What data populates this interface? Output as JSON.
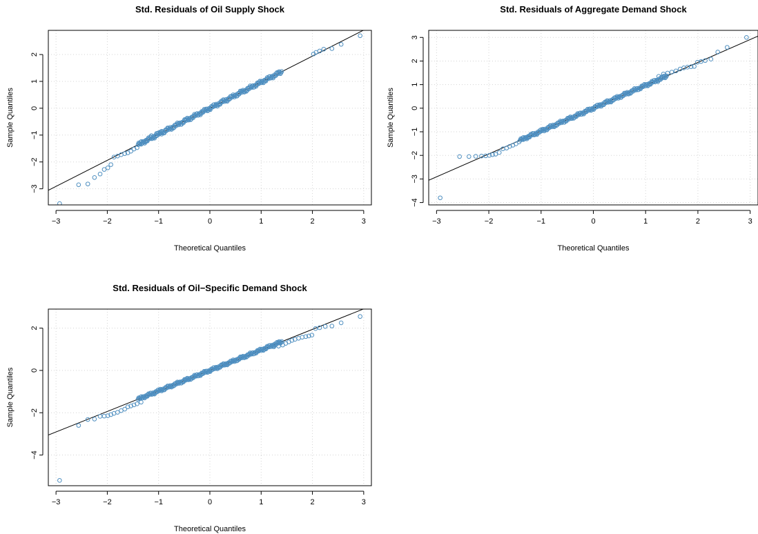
{
  "chart_data": [
    {
      "type": "scatter",
      "title": "Std. Residuals of Oil Supply Shock",
      "xlabel": "Theoretical Quantiles",
      "ylabel": "Sample Quantiles",
      "xlim": [
        -3.15,
        3.15
      ],
      "ylim": [
        -3.6,
        2.9
      ],
      "xticks": [
        -3,
        -2,
        -1,
        0,
        1,
        2,
        3
      ],
      "yticks": [
        -3,
        -2,
        -1,
        0,
        1,
        2
      ],
      "grid": true,
      "ref_line": {
        "intercept": 0.0,
        "slope": 0.97
      },
      "points": [
        {
          "x": -2.93,
          "y": -3.55
        },
        {
          "x": -2.56,
          "y": -2.85
        },
        {
          "x": -2.38,
          "y": -2.82
        },
        {
          "x": -2.25,
          "y": -2.58
        },
        {
          "x": -2.14,
          "y": -2.45
        },
        {
          "x": -2.06,
          "y": -2.28
        },
        {
          "x": -1.99,
          "y": -2.22
        },
        {
          "x": -1.93,
          "y": -2.1
        },
        {
          "x": -1.87,
          "y": -1.82
        },
        {
          "x": -1.8,
          "y": -1.78
        },
        {
          "x": -1.73,
          "y": -1.73
        },
        {
          "x": -1.66,
          "y": -1.69
        },
        {
          "x": -1.6,
          "y": -1.66
        },
        {
          "x": -1.54,
          "y": -1.6
        },
        {
          "x": -1.48,
          "y": -1.52
        },
        {
          "x": -1.42,
          "y": -1.47
        },
        {
          "x": -1.34,
          "y": -1.34
        },
        {
          "x": -1.25,
          "y": -1.22
        },
        {
          "x": -1.14,
          "y": -1.02
        },
        {
          "x": -1.04,
          "y": -0.94
        },
        {
          "x": -0.94,
          "y": -0.86
        },
        {
          "x": 2.02,
          "y": 2.02
        },
        {
          "x": 2.07,
          "y": 2.08
        },
        {
          "x": 2.14,
          "y": 2.13
        },
        {
          "x": 2.22,
          "y": 2.2
        },
        {
          "x": 2.38,
          "y": 2.22
        },
        {
          "x": 2.56,
          "y": 2.38
        },
        {
          "x": 2.93,
          "y": 2.7
        }
      ]
    },
    {
      "type": "scatter",
      "title": "Std. Residuals of Aggregate Demand Shock",
      "xlabel": "Theoretical Quantiles",
      "ylabel": "Sample Quantiles",
      "xlim": [
        -3.15,
        3.15
      ],
      "ylim": [
        -4.1,
        3.3
      ],
      "xticks": [
        -3,
        -2,
        -1,
        0,
        1,
        2,
        3
      ],
      "yticks": [
        -4,
        -3,
        -2,
        -1,
        0,
        1,
        2,
        3
      ],
      "grid": true,
      "ref_line": {
        "intercept": 0.0,
        "slope": 0.97
      },
      "points": [
        {
          "x": -2.93,
          "y": -3.8
        },
        {
          "x": -2.56,
          "y": -2.05
        },
        {
          "x": -2.38,
          "y": -2.05
        },
        {
          "x": -2.25,
          "y": -2.04
        },
        {
          "x": -2.14,
          "y": -2.03
        },
        {
          "x": -2.06,
          "y": -2.02
        },
        {
          "x": -1.99,
          "y": -2.0
        },
        {
          "x": -1.93,
          "y": -1.97
        },
        {
          "x": -1.87,
          "y": -1.95
        },
        {
          "x": -1.8,
          "y": -1.88
        },
        {
          "x": -1.73,
          "y": -1.72
        },
        {
          "x": -1.66,
          "y": -1.69
        },
        {
          "x": -1.6,
          "y": -1.62
        },
        {
          "x": -1.54,
          "y": -1.57
        },
        {
          "x": -1.48,
          "y": -1.51
        },
        {
          "x": -1.42,
          "y": -1.43
        },
        {
          "x": -1.34,
          "y": -1.33
        },
        {
          "x": -1.25,
          "y": -1.22
        },
        {
          "x": 1.25,
          "y": 1.35
        },
        {
          "x": 1.34,
          "y": 1.45
        },
        {
          "x": 1.42,
          "y": 1.49
        },
        {
          "x": 1.5,
          "y": 1.53
        },
        {
          "x": 1.58,
          "y": 1.58
        },
        {
          "x": 1.66,
          "y": 1.66
        },
        {
          "x": 1.73,
          "y": 1.71
        },
        {
          "x": 1.8,
          "y": 1.74
        },
        {
          "x": 1.87,
          "y": 1.76
        },
        {
          "x": 1.93,
          "y": 1.77
        },
        {
          "x": 1.99,
          "y": 1.95
        },
        {
          "x": 2.06,
          "y": 1.98
        },
        {
          "x": 2.14,
          "y": 2.02
        },
        {
          "x": 2.25,
          "y": 2.08
        },
        {
          "x": 2.38,
          "y": 2.38
        },
        {
          "x": 2.56,
          "y": 2.58
        },
        {
          "x": 2.93,
          "y": 3.0
        }
      ]
    },
    {
      "type": "scatter",
      "title": "Std. Residuals of Oil−Specific Demand Shock",
      "xlabel": "Theoretical Quantiles",
      "ylabel": "Sample Quantiles",
      "xlim": [
        -3.15,
        3.15
      ],
      "ylim": [
        -5.45,
        2.9
      ],
      "xticks": [
        -3,
        -2,
        -1,
        0,
        1,
        2,
        3
      ],
      "yticks": [
        -4,
        -2,
        0,
        2
      ],
      "grid": true,
      "ref_line": {
        "intercept": 0.0,
        "slope": 0.97
      },
      "points": [
        {
          "x": -2.93,
          "y": -5.2
        },
        {
          "x": -2.56,
          "y": -2.6
        },
        {
          "x": -2.38,
          "y": -2.32
        },
        {
          "x": -2.25,
          "y": -2.3
        },
        {
          "x": -2.14,
          "y": -2.17
        },
        {
          "x": -2.06,
          "y": -2.16
        },
        {
          "x": -1.99,
          "y": -2.14
        },
        {
          "x": -1.93,
          "y": -2.09
        },
        {
          "x": -1.87,
          "y": -2.03
        },
        {
          "x": -1.8,
          "y": -1.98
        },
        {
          "x": -1.73,
          "y": -1.9
        },
        {
          "x": -1.66,
          "y": -1.83
        },
        {
          "x": -1.6,
          "y": -1.72
        },
        {
          "x": -1.54,
          "y": -1.68
        },
        {
          "x": -1.48,
          "y": -1.63
        },
        {
          "x": -1.42,
          "y": -1.58
        },
        {
          "x": -1.34,
          "y": -1.5
        },
        {
          "x": 1.25,
          "y": 1.12
        },
        {
          "x": 1.34,
          "y": 1.15
        },
        {
          "x": 1.42,
          "y": 1.2
        },
        {
          "x": 1.48,
          "y": 1.28
        },
        {
          "x": 1.54,
          "y": 1.35
        },
        {
          "x": 1.6,
          "y": 1.42
        },
        {
          "x": 1.66,
          "y": 1.47
        },
        {
          "x": 1.73,
          "y": 1.52
        },
        {
          "x": 1.8,
          "y": 1.57
        },
        {
          "x": 1.87,
          "y": 1.6
        },
        {
          "x": 1.93,
          "y": 1.63
        },
        {
          "x": 1.99,
          "y": 1.67
        },
        {
          "x": 2.06,
          "y": 1.98
        },
        {
          "x": 2.14,
          "y": 2.02
        },
        {
          "x": 2.25,
          "y": 2.08
        },
        {
          "x": 2.38,
          "y": 2.1
        },
        {
          "x": 2.56,
          "y": 2.25
        },
        {
          "x": 2.93,
          "y": 2.55
        }
      ]
    }
  ]
}
